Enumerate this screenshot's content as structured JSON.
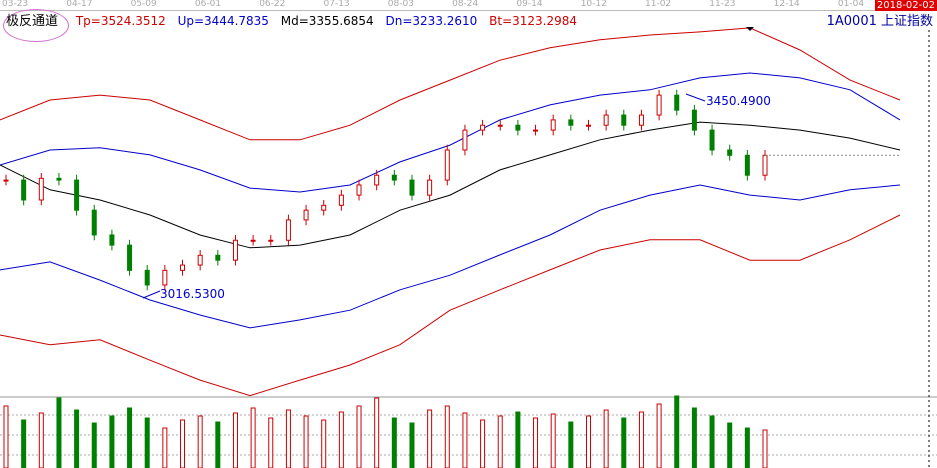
{
  "x_ticks": [
    "03-23",
    "04-17",
    "05-09",
    "06-01",
    "06-22",
    "07-13",
    "08-03",
    "08-24",
    "09-14",
    "10-12",
    "11-02",
    "11-23",
    "12-14",
    "01-04"
  ],
  "end_date": "2018-02-02",
  "indicator": {
    "name": "极反通道",
    "tp": "Tp=3524.3512",
    "up": "Up=3444.7835",
    "md": "Md=3355.6854",
    "dn": "Dn=3233.2610",
    "bt": "Bt=3123.2984"
  },
  "symbol": "1A0001  上证指数",
  "colors": {
    "tp": "#cc0000",
    "up": "#0000cc",
    "md": "#000000",
    "dn": "#0000cc",
    "bt": "#cc0000",
    "up_candle": "#cc0000",
    "down_candle": "#008000"
  },
  "chart_data": {
    "type": "line",
    "title": "",
    "xlabel": "",
    "ylabel": "",
    "annotations": [
      {
        "text": "3016.5300",
        "value": 3016.53
      },
      {
        "text": "3450.4900",
        "value": 3450.49
      }
    ],
    "close": [
      3272,
      3227,
      3276,
      3272,
      3204,
      3148,
      3125,
      3068,
      3035,
      3068,
      3080,
      3102,
      3091,
      3136,
      3136,
      3136,
      3182,
      3204,
      3215,
      3238,
      3261,
      3283,
      3272,
      3238,
      3272,
      3340,
      3385,
      3396,
      3396,
      3385,
      3385,
      3408,
      3396,
      3396,
      3419,
      3396,
      3419,
      3464,
      3430,
      3385,
      3340,
      3328,
      3283,
      3328
    ],
    "series": [
      {
        "key": "tp",
        "values": [
          3408,
          3453,
          3464,
          3453,
          3408,
          3363,
          3363,
          3396,
          3453,
          3498,
          3543,
          3571,
          3589,
          3600,
          3607,
          3616,
          3566,
          3498,
          3453
        ]
      },
      {
        "key": "up",
        "values": [
          3306,
          3340,
          3345,
          3329,
          3295,
          3254,
          3245,
          3261,
          3313,
          3351,
          3408,
          3442,
          3464,
          3476,
          3503,
          3514,
          3503,
          3476,
          3408
        ]
      },
      {
        "key": "md",
        "values": [
          3306,
          3250,
          3227,
          3193,
          3148,
          3119,
          3125,
          3148,
          3204,
          3238,
          3295,
          3329,
          3363,
          3385,
          3403,
          3396,
          3385,
          3367,
          3340
        ]
      },
      {
        "key": "dn",
        "values": [
          3069,
          3087,
          3046,
          3001,
          2967,
          2938,
          2956,
          2978,
          3024,
          3057,
          3103,
          3148,
          3204,
          3238,
          3261,
          3238,
          3227,
          3250,
          3261
        ]
      },
      {
        "key": "bt",
        "values": [
          2922,
          2900,
          2911,
          2865,
          2820,
          2785,
          2820,
          2854,
          2900,
          2978,
          3024,
          3069,
          3114,
          3137,
          3137,
          3091,
          3091,
          3137,
          3193
        ]
      }
    ],
    "volume": [
      62,
      48,
      55,
      70,
      58,
      45,
      52,
      60,
      50,
      40,
      48,
      52,
      46,
      55,
      60,
      50,
      58,
      52,
      48,
      56,
      62,
      70,
      50,
      45,
      58,
      62,
      55,
      48,
      52,
      56,
      50,
      54,
      46,
      52,
      58,
      50,
      56,
      64,
      72,
      60,
      52,
      45,
      40,
      38
    ]
  }
}
